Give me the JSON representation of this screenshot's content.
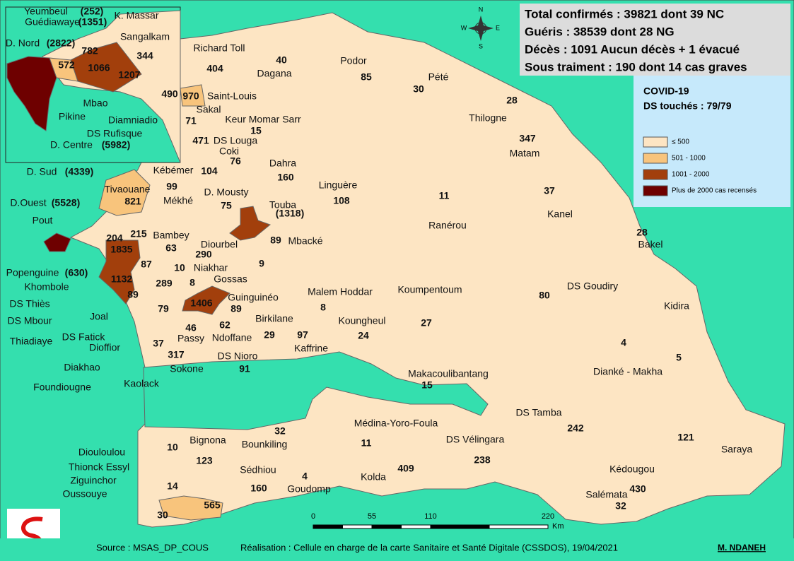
{
  "header": {
    "lines": [
      "Total confirmés : 39821 dont 39 NC",
      "Guéris : 38539 dont 28 NG",
      "Décès : 1091 Aucun décès + 1 évacué",
      "Sous traiment : 190 dont 14 cas graves"
    ]
  },
  "legend": {
    "title": "COVID-19",
    "subtitle": "DS touchés : 79/79",
    "items": [
      {
        "label": "≤ 500",
        "color": "#fde5c3"
      },
      {
        "label": "501 - 1000",
        "color": "#f8c47c"
      },
      {
        "label": "1001 - 2000",
        "color": "#a23f0c"
      },
      {
        "label": "Plus de 2000 cas recensés",
        "color": "#6e0000"
      }
    ]
  },
  "compass": [
    "N",
    "E",
    "S",
    "W"
  ],
  "scale": {
    "ticks": [
      0,
      55,
      110,
      220
    ],
    "unit": "Km"
  },
  "labels": [
    {
      "name": "Richard Toll",
      "cases": 404
    },
    {
      "name": "Dagana",
      "cases": 40
    },
    {
      "name": "Podor",
      "cases": 85
    },
    {
      "name": "Pété",
      "cases": 30
    },
    {
      "name": "Thilogne",
      "cases": 28
    },
    {
      "name": "Matam",
      "cases": 347
    },
    {
      "name": "Saint-Louis",
      "cases": 970
    },
    {
      "name": "Sakal",
      "cases": 71
    },
    {
      "name": "Keur Momar Sarr",
      "cases": 15
    },
    {
      "name": "DS Louga",
      "cases": 471
    },
    {
      "name": "Coki",
      "cases": 76
    },
    {
      "name": "Dahra",
      "cases": 160
    },
    {
      "name": "Linguère",
      "cases": 108
    },
    {
      "name": "Ranérou",
      "cases": 11
    },
    {
      "name": "Kanel",
      "cases": 37
    },
    {
      "name": "Kébémer",
      "cases": 104
    },
    {
      "name": "Mékhé",
      "cases": 99
    },
    {
      "name": "D. Mousty",
      "cases": 75
    },
    {
      "name": "Touba",
      "cases": "(1318)"
    },
    {
      "name": "Tivaouane",
      "cases": 821
    },
    {
      "name": "Mbacké",
      "cases": 89
    },
    {
      "name": "Bakel",
      "cases": 28
    },
    {
      "name": "Bambey",
      "cases": 63
    },
    {
      "name": "Diourbel",
      "cases": 290
    },
    {
      "name": "Pout",
      "cases": 204
    },
    {
      "cases": 215
    },
    {
      "cases": 1835
    },
    {
      "cases": 87
    },
    {
      "cases": 1132
    },
    {
      "cases": 89
    },
    {
      "name": "Niakhar",
      "cases": 10
    },
    {
      "name": "Gossas",
      "cases": 9
    },
    {
      "cases": 8
    },
    {
      "cases": 289
    },
    {
      "name": "Malem Hoddar",
      "cases": 8
    },
    {
      "name": "Koumpentoum",
      "cases": 27
    },
    {
      "name": "DS Goudiry",
      "cases": 80
    },
    {
      "name": "Kidira",
      "cases": 5
    },
    {
      "name": "Guinguinéo",
      "cases": 89
    },
    {
      "cases": 1406
    },
    {
      "name": "Birkilane",
      "cases": 29
    },
    {
      "name": "Koungheul",
      "cases": 24
    },
    {
      "cases": 62
    },
    {
      "cases": 79
    },
    {
      "cases": 46
    },
    {
      "name": "Passy"
    },
    {
      "name": "Ndoffane"
    },
    {
      "name": "Kaffrine",
      "cases": 97
    },
    {
      "name": "DS Nioro",
      "cases": 91
    },
    {
      "name": "Sokone",
      "cases": 317
    },
    {
      "name": "Dianké - Makha",
      "cases": 4
    },
    {
      "name": "Makacoulibantang",
      "cases": 15
    },
    {
      "name": "Médina-Yoro-Foula",
      "cases": 11
    },
    {
      "name": "Bounkiling",
      "cases": 32
    },
    {
      "name": "DS Vélingara",
      "cases": 238
    },
    {
      "name": "DS Tamba",
      "cases": 242
    },
    {
      "name": "Saraya",
      "cases": 121
    },
    {
      "name": "Kédougou",
      "cases": 430
    },
    {
      "name": "Salémata",
      "cases": 32
    },
    {
      "name": "Bignona",
      "cases": 123
    },
    {
      "name": "Sédhiou",
      "cases": 160
    },
    {
      "name": "Goudomp",
      "cases": 4
    },
    {
      "name": "Kolda",
      "cases": 409
    },
    {
      "name": "Diouloulou",
      "cases": 10
    },
    {
      "name": "Thionck Essyl",
      "cases": 14
    },
    {
      "name": "Ziguinchor",
      "cases": 565
    },
    {
      "name": "Oussouye",
      "cases": 30
    },
    {
      "name": "Yeumbeul",
      "cases": "(252)"
    },
    {
      "name": "K. Massar"
    },
    {
      "name": "Guédiawaye",
      "cases": "(1351)"
    },
    {
      "name": "Sangalkam",
      "cases": 344
    },
    {
      "cases": 782
    },
    {
      "name": "D. Nord",
      "cases": "(2822)"
    },
    {
      "cases": 572
    },
    {
      "cases": 1066
    },
    {
      "cases": 1207
    },
    {
      "name": "Mbao"
    },
    {
      "name": "Pikine"
    },
    {
      "cases": 490
    },
    {
      "name": "Diamniadio"
    },
    {
      "name": "DS Rufisque"
    },
    {
      "name": "D. Centre",
      "cases": "(5982)"
    },
    {
      "name": "D. Sud",
      "cases": "(4339)"
    },
    {
      "name": "D.Ouest",
      "cases": "(5528)"
    },
    {
      "name": "Popenguine",
      "cases": "(630)"
    },
    {
      "name": "Khombole"
    },
    {
      "name": "DS Thiès"
    },
    {
      "name": "DS Mbour"
    },
    {
      "name": "Thiadiaye"
    },
    {
      "name": "DS Fatick"
    },
    {
      "name": "Dioffior"
    },
    {
      "name": "Joal"
    },
    {
      "name": "Diakhao"
    },
    {
      "name": "Foundiougne"
    },
    {
      "name": "Kaolack",
      "cases": 37
    }
  ],
  "footer": {
    "source": "Source : MSAS_DP_COUS",
    "credit": "Réalisation : Cellule en charge de la carte Sanitaire et Santé Digitale (CSSDOS), 19/04/2021",
    "author": "M. NDANEH"
  }
}
